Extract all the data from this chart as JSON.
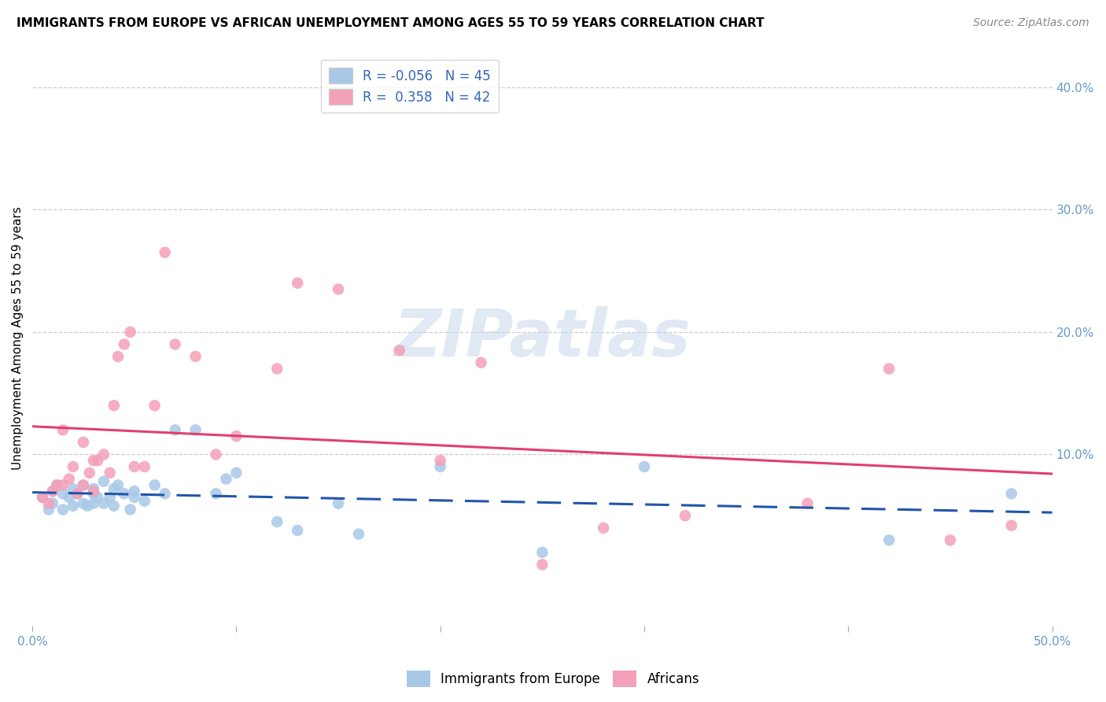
{
  "title": "IMMIGRANTS FROM EUROPE VS AFRICAN UNEMPLOYMENT AMONG AGES 55 TO 59 YEARS CORRELATION CHART",
  "source": "Source: ZipAtlas.com",
  "ylabel": "Unemployment Among Ages 55 to 59 years",
  "xlim": [
    0,
    0.5
  ],
  "ylim": [
    -0.04,
    0.43
  ],
  "watermark_text": "ZIPatlas",
  "europe_color": "#a8c8e8",
  "africa_color": "#f4a0b8",
  "europe_line_color": "#2255aa",
  "africa_line_color": "#e04070",
  "europe_line_style": "--",
  "africa_line_style": "-",
  "ytick_vals": [
    0.1,
    0.2,
    0.3,
    0.4
  ],
  "ytick_labels": [
    "10.0%",
    "20.0%",
    "30.0%",
    "40.0%"
  ],
  "xtick_vals": [
    0.0,
    0.1,
    0.2,
    0.3,
    0.4,
    0.5
  ],
  "xtick_labels": [
    "0.0%",
    "",
    "",
    "",
    "",
    "50.0%"
  ],
  "tick_color": "#6699cc",
  "grid_color": "#cccccc",
  "title_fontsize": 11,
  "source_fontsize": 10,
  "axis_fontsize": 11,
  "legend_top_labels": [
    "R = -0.056   N = 45",
    "R =  0.358   N = 42"
  ],
  "legend_bot_labels": [
    "Immigrants from Europe",
    "Africans"
  ],
  "europe_points_x": [
    0.005,
    0.008,
    0.01,
    0.01,
    0.012,
    0.015,
    0.015,
    0.018,
    0.02,
    0.02,
    0.022,
    0.025,
    0.025,
    0.027,
    0.03,
    0.03,
    0.03,
    0.032,
    0.035,
    0.035,
    0.038,
    0.04,
    0.04,
    0.042,
    0.045,
    0.048,
    0.05,
    0.05,
    0.055,
    0.06,
    0.065,
    0.07,
    0.08,
    0.09,
    0.095,
    0.1,
    0.12,
    0.13,
    0.15,
    0.16,
    0.2,
    0.25,
    0.3,
    0.42,
    0.48
  ],
  "europe_points_y": [
    0.065,
    0.055,
    0.06,
    0.07,
    0.075,
    0.068,
    0.055,
    0.065,
    0.058,
    0.072,
    0.068,
    0.06,
    0.075,
    0.058,
    0.068,
    0.06,
    0.072,
    0.065,
    0.078,
    0.06,
    0.065,
    0.072,
    0.058,
    0.075,
    0.068,
    0.055,
    0.065,
    0.07,
    0.062,
    0.075,
    0.068,
    0.12,
    0.12,
    0.068,
    0.08,
    0.085,
    0.045,
    0.038,
    0.06,
    0.035,
    0.09,
    0.02,
    0.09,
    0.03,
    0.068
  ],
  "africa_points_x": [
    0.005,
    0.008,
    0.01,
    0.012,
    0.015,
    0.015,
    0.018,
    0.02,
    0.022,
    0.025,
    0.025,
    0.028,
    0.03,
    0.03,
    0.032,
    0.035,
    0.038,
    0.04,
    0.042,
    0.045,
    0.048,
    0.05,
    0.055,
    0.06,
    0.065,
    0.07,
    0.08,
    0.09,
    0.1,
    0.12,
    0.13,
    0.15,
    0.18,
    0.2,
    0.22,
    0.25,
    0.28,
    0.32,
    0.38,
    0.42,
    0.45,
    0.48
  ],
  "africa_points_y": [
    0.065,
    0.06,
    0.07,
    0.075,
    0.075,
    0.12,
    0.08,
    0.09,
    0.068,
    0.075,
    0.11,
    0.085,
    0.07,
    0.095,
    0.095,
    0.1,
    0.085,
    0.14,
    0.18,
    0.19,
    0.2,
    0.09,
    0.09,
    0.14,
    0.265,
    0.19,
    0.18,
    0.1,
    0.115,
    0.17,
    0.24,
    0.235,
    0.185,
    0.095,
    0.175,
    0.01,
    0.04,
    0.05,
    0.06,
    0.17,
    0.03,
    0.042
  ]
}
